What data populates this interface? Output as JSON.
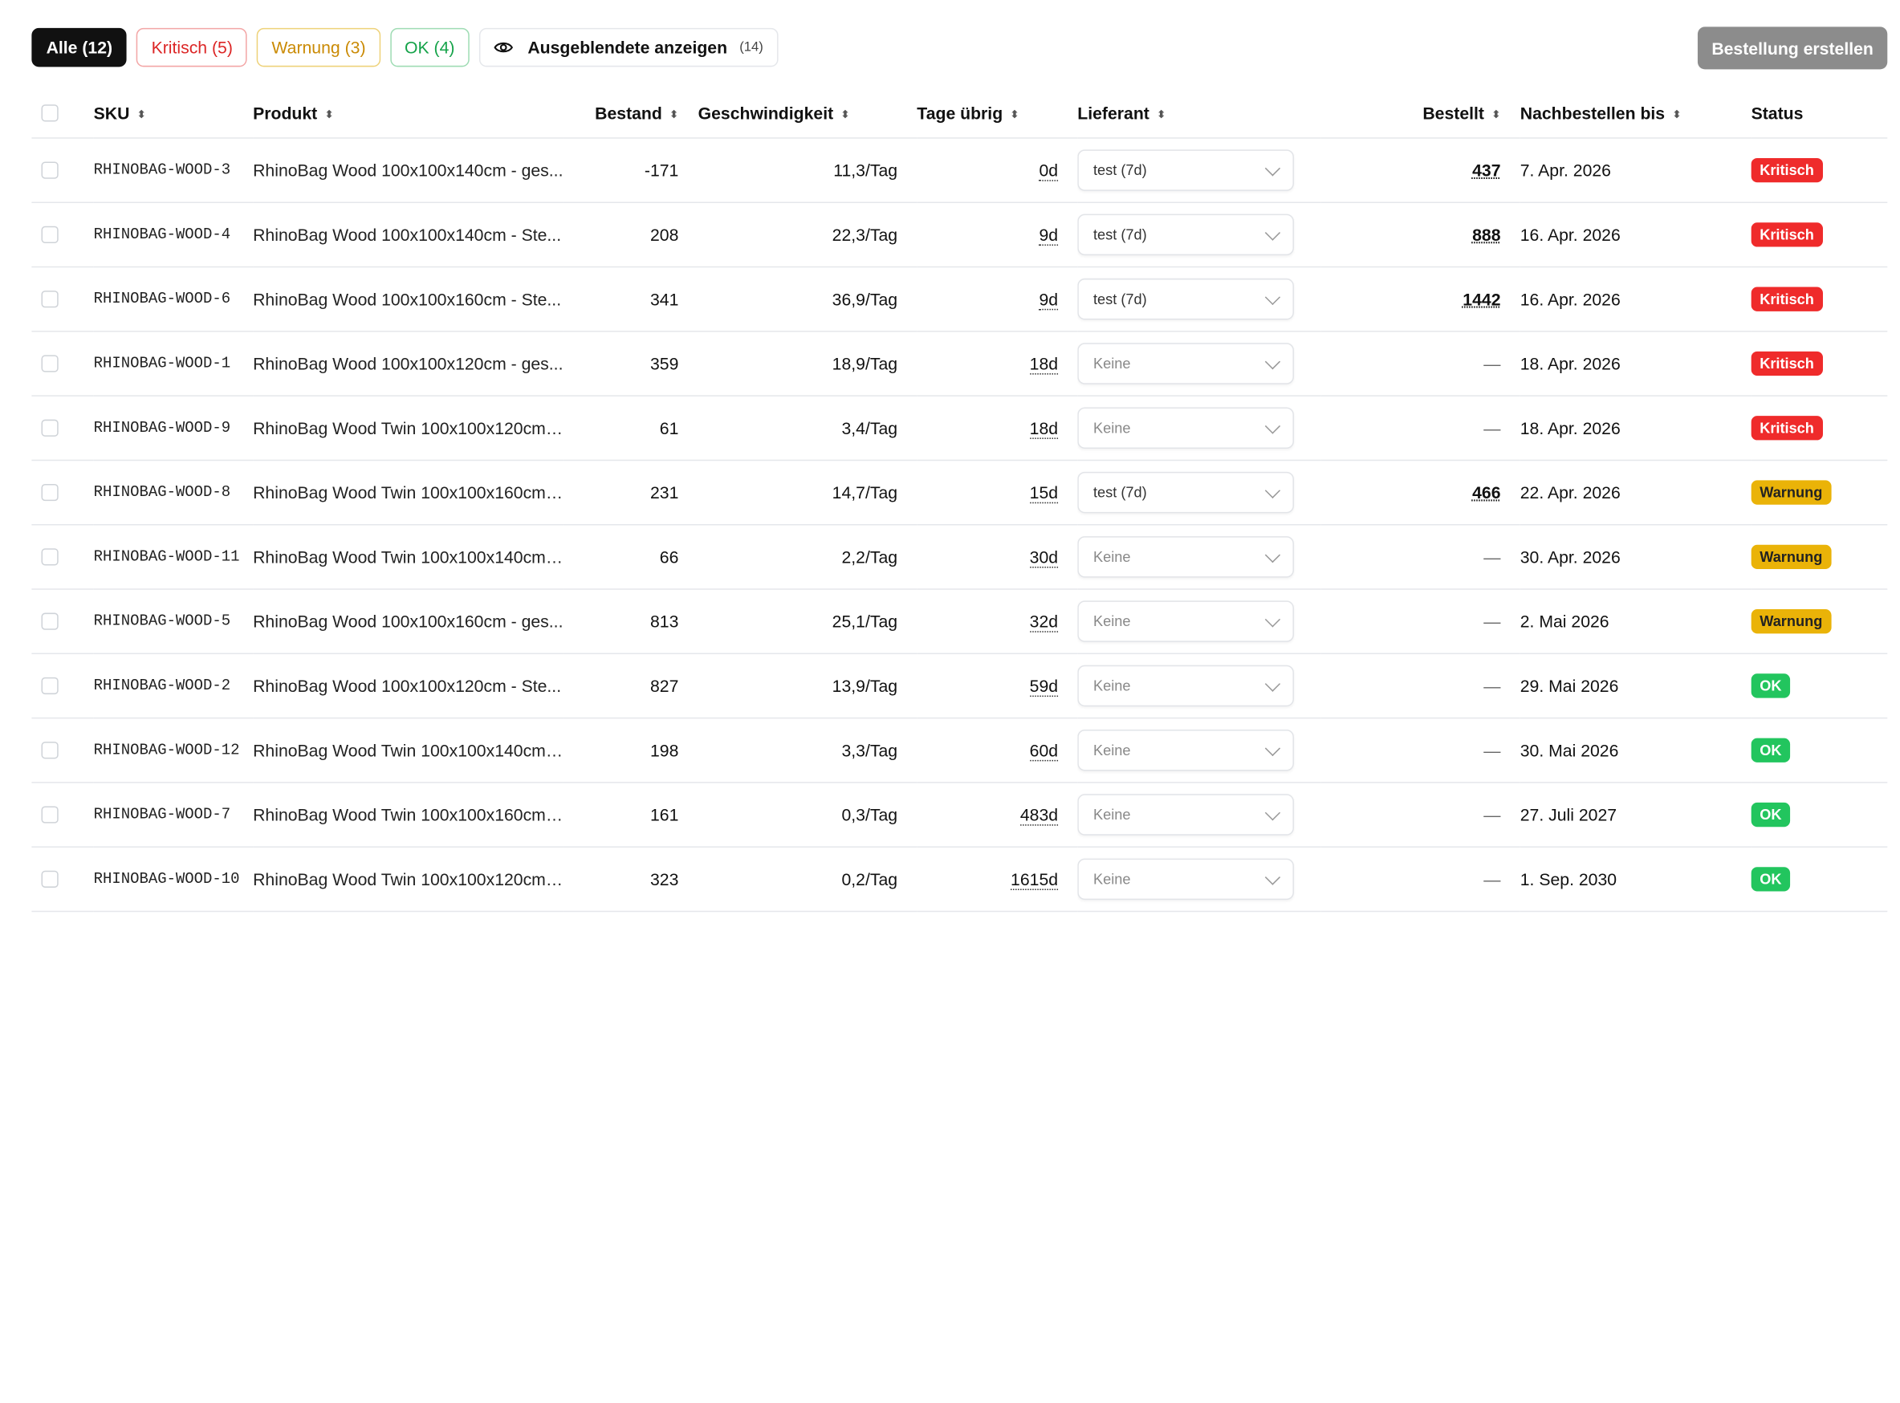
{
  "filters": [
    {
      "label": "Alle (12)",
      "kind": "active"
    },
    {
      "label": "Kritisch (5)",
      "kind": "crit"
    },
    {
      "label": "Warnung (3)",
      "kind": "warn"
    },
    {
      "label": "OK (4)",
      "kind": "ok"
    }
  ],
  "hidden_toggle": {
    "label": "Ausgeblendete anzeigen",
    "count": "(14)",
    "icon": "eye-icon"
  },
  "create_button": "Bestellung erstellen",
  "columns": {
    "sku": "SKU",
    "product": "Produkt",
    "stock": "Bestand",
    "velocity": "Geschwindigkeit",
    "days_left": "Tage übrig",
    "supplier": "Lieferant",
    "ordered": "Bestellt",
    "reorder_by": "Nachbestellen bis",
    "status": "Status"
  },
  "rows": [
    {
      "sku": "RHINOBAG-WOOD-3",
      "product": "RhinoBag Wood 100x100x140cm - ges...",
      "stock": "-171",
      "velocity": "11,3/Tag",
      "days": "0d",
      "supplier": "test (7d)",
      "ordered": "437",
      "reorder": "7. Apr. 2026",
      "status": "Kritisch"
    },
    {
      "sku": "RHINOBAG-WOOD-4",
      "product": "RhinoBag Wood 100x100x140cm - Ste...",
      "stock": "208",
      "velocity": "22,3/Tag",
      "days": "9d",
      "supplier": "test (7d)",
      "ordered": "888",
      "reorder": "16. Apr. 2026",
      "status": "Kritisch"
    },
    {
      "sku": "RHINOBAG-WOOD-6",
      "product": "RhinoBag Wood 100x100x160cm - Ste...",
      "stock": "341",
      "velocity": "36,9/Tag",
      "days": "9d",
      "supplier": "test (7d)",
      "ordered": "1442",
      "reorder": "16. Apr. 2026",
      "status": "Kritisch"
    },
    {
      "sku": "RHINOBAG-WOOD-1",
      "product": "RhinoBag Wood 100x100x120cm - ges...",
      "stock": "359",
      "velocity": "18,9/Tag",
      "days": "18d",
      "supplier": "Keine",
      "ordered": "—",
      "reorder": "18. Apr. 2026",
      "status": "Kritisch"
    },
    {
      "sku": "RHINOBAG-WOOD-9",
      "product": "RhinoBag Wood Twin 100x100x120cm ...",
      "stock": "61",
      "velocity": "3,4/Tag",
      "days": "18d",
      "supplier": "Keine",
      "ordered": "—",
      "reorder": "18. Apr. 2026",
      "status": "Kritisch"
    },
    {
      "sku": "RHINOBAG-WOOD-8",
      "product": "RhinoBag Wood Twin 100x100x160cm ...",
      "stock": "231",
      "velocity": "14,7/Tag",
      "days": "15d",
      "supplier": "test (7d)",
      "ordered": "466",
      "reorder": "22. Apr. 2026",
      "status": "Warnung"
    },
    {
      "sku": "RHINOBAG-WOOD-11",
      "product": "RhinoBag Wood Twin 100x100x140cm ...",
      "stock": "66",
      "velocity": "2,2/Tag",
      "days": "30d",
      "supplier": "Keine",
      "ordered": "—",
      "reorder": "30. Apr. 2026",
      "status": "Warnung"
    },
    {
      "sku": "RHINOBAG-WOOD-5",
      "product": "RhinoBag Wood 100x100x160cm - ges...",
      "stock": "813",
      "velocity": "25,1/Tag",
      "days": "32d",
      "supplier": "Keine",
      "ordered": "—",
      "reorder": "2. Mai 2026",
      "status": "Warnung"
    },
    {
      "sku": "RHINOBAG-WOOD-2",
      "product": "RhinoBag Wood 100x100x120cm - Ste...",
      "stock": "827",
      "velocity": "13,9/Tag",
      "days": "59d",
      "supplier": "Keine",
      "ordered": "—",
      "reorder": "29. Mai 2026",
      "status": "OK"
    },
    {
      "sku": "RHINOBAG-WOOD-12",
      "product": "RhinoBag Wood Twin 100x100x140cm ...",
      "stock": "198",
      "velocity": "3,3/Tag",
      "days": "60d",
      "supplier": "Keine",
      "ordered": "—",
      "reorder": "30. Mai 2026",
      "status": "OK"
    },
    {
      "sku": "RHINOBAG-WOOD-7",
      "product": "RhinoBag Wood Twin 100x100x160cm ...",
      "stock": "161",
      "velocity": "0,3/Tag",
      "days": "483d",
      "supplier": "Keine",
      "ordered": "—",
      "reorder": "27. Juli 2027",
      "status": "OK"
    },
    {
      "sku": "RHINOBAG-WOOD-10",
      "product": "RhinoBag Wood Twin 100x100x120cm ...",
      "stock": "323",
      "velocity": "0,2/Tag",
      "days": "1615d",
      "supplier": "Keine",
      "ordered": "—",
      "reorder": "1. Sep. 2030",
      "status": "OK"
    }
  ],
  "colors": {
    "critical": "#ef2b2b",
    "warning": "#eab308",
    "ok": "#22c55e"
  }
}
